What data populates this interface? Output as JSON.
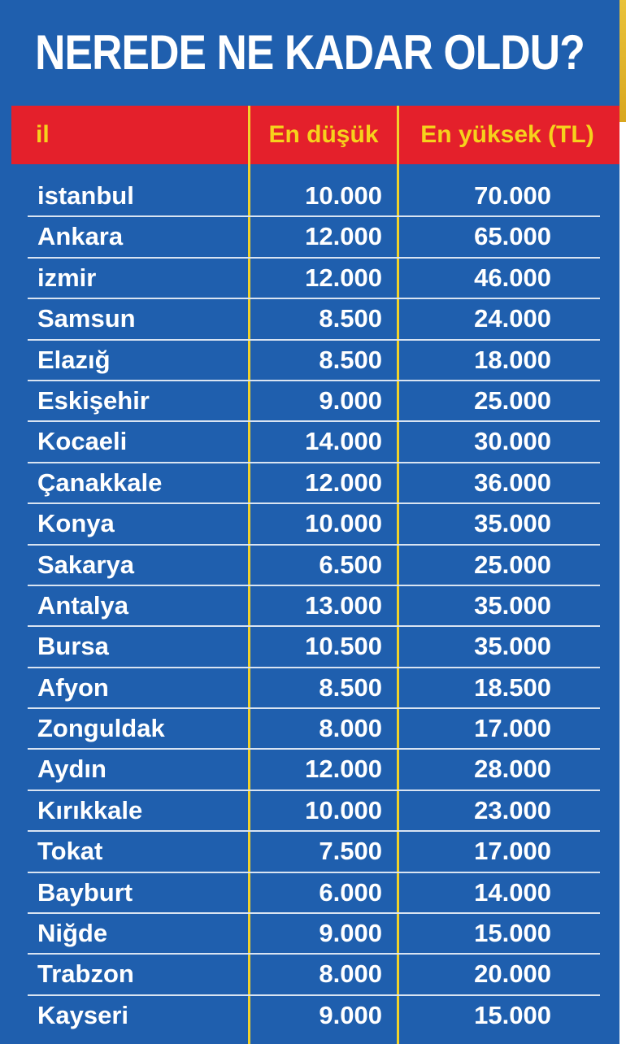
{
  "title": "NEREDE NE KADAR OLDU?",
  "colors": {
    "panel": "#1f5fae",
    "header": "#e4202b",
    "header_text": "#f6d21c",
    "divider": "#f2d22a",
    "text": "#ffffff"
  },
  "chart_data": {
    "type": "table",
    "title": "NEREDE NE KADAR OLDU?",
    "columns": [
      "il",
      "En düşük",
      "En yüksek (TL)"
    ],
    "rows": [
      [
        "istanbul",
        "10.000",
        "70.000"
      ],
      [
        "Ankara",
        "12.000",
        "65.000"
      ],
      [
        "izmir",
        "12.000",
        "46.000"
      ],
      [
        "Samsun",
        "8.500",
        "24.000"
      ],
      [
        "Elazığ",
        "8.500",
        "18.000"
      ],
      [
        "Eskişehir",
        "9.000",
        "25.000"
      ],
      [
        "Kocaeli",
        "14.000",
        "30.000"
      ],
      [
        "Çanakkale",
        "12.000",
        "36.000"
      ],
      [
        "Konya",
        "10.000",
        "35.000"
      ],
      [
        "Sakarya",
        "6.500",
        "25.000"
      ],
      [
        "Antalya",
        "13.000",
        "35.000"
      ],
      [
        "Bursa",
        "10.500",
        "35.000"
      ],
      [
        "Afyon",
        "8.500",
        "18.500"
      ],
      [
        "Zonguldak",
        "8.000",
        "17.000"
      ],
      [
        "Aydın",
        "12.000",
        "28.000"
      ],
      [
        "Kırıkkale",
        "10.000",
        "23.000"
      ],
      [
        "Tokat",
        "7.500",
        "17.000"
      ],
      [
        "Bayburt",
        "6.000",
        "14.000"
      ],
      [
        "Niğde",
        "9.000",
        "15.000"
      ],
      [
        "Trabzon",
        "8.000",
        "20.000"
      ],
      [
        "Kayseri",
        "9.000",
        "15.000"
      ]
    ]
  }
}
